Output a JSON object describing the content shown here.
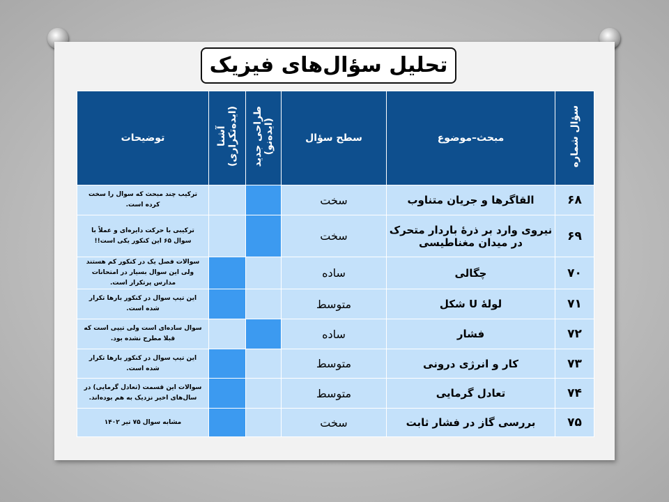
{
  "title": "تحلیل سؤال‌های فیزیک",
  "headers": {
    "number": "سؤال شماره",
    "topic": "مبحث–موضوع",
    "level": "سطح سؤال",
    "new": "طراحی جدید\n(ایده‌نو)",
    "familiar": "آشنا\n(ایده‌تکراری)",
    "notes": "توضیحات"
  },
  "rows": [
    {
      "number": "۶۸",
      "topic": "القاگرها و جریان متناوب",
      "level": "سخت",
      "idea": "new",
      "notes": "ترکیب چند مبحث که سوال را سخت کرده است."
    },
    {
      "number": "۶۹",
      "topic": "نیروی وارد بر ذرهٔ باردار متحرک در میدان مغناطیسی",
      "level": "سخت",
      "idea": "new",
      "notes": "ترکیبی با حرکت دایره‌ای و عملاً با سوال ۶۵ این کنکور یکی است!!"
    },
    {
      "number": "۷۰",
      "topic": "چگالی",
      "level": "ساده",
      "idea": "familiar",
      "notes": "سوالات فصل یک در کنکور کم هستند ولی این سوال بسیار در امتحانات مدارس پرتکرار است."
    },
    {
      "number": "۷۱",
      "topic": "لولهٔ U شکل",
      "level": "متوسط",
      "idea": "familiar",
      "notes": "این تیپ سوال در کنکور بارها تکرار شده است."
    },
    {
      "number": "۷۲",
      "topic": "فشار",
      "level": "ساده",
      "idea": "new",
      "notes": "سوال ساده‌ای است ولی تیپی است که قبلا مطرح نشده بود."
    },
    {
      "number": "۷۳",
      "topic": "کار و انرژی درونی",
      "level": "متوسط",
      "idea": "familiar",
      "notes": "این تیپ سوال در کنکور بارها تکرار شده است."
    },
    {
      "number": "۷۴",
      "topic": "تعادل گرمایی",
      "level": "متوسط",
      "idea": "familiar",
      "notes": "سوالات این قسمت (تعادل گرمایی) در سال‌های اخیر نزدیک به هم بوده‌اند."
    },
    {
      "number": "۷۵",
      "topic": "بررسی گاز در فشار ثابت",
      "level": "سخت",
      "idea": "familiar",
      "notes": "مشابه سوال ۷۵ تیر ۱۴۰۲"
    }
  ]
}
